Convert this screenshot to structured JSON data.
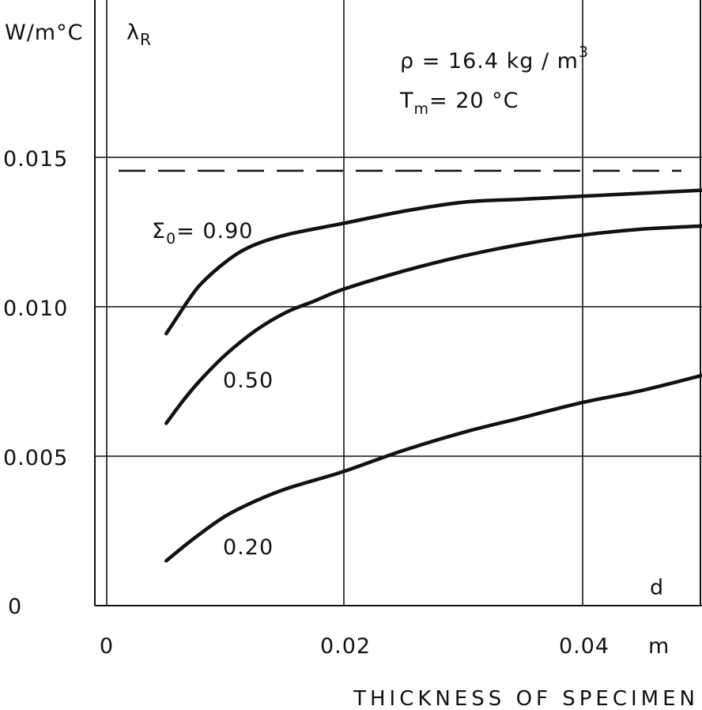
{
  "chart_data": {
    "type": "line",
    "title": "",
    "y_unit": "W/m°C",
    "y_symbol": "λ",
    "y_symbol_sub": "R",
    "x_symbol": "d",
    "x_unit": "m",
    "xlabel": "THICKNESS OF SPECIMEN",
    "xlim": [
      -0.001,
      0.05
    ],
    "ylim": [
      0,
      0.0175
    ],
    "x_ticks": [
      {
        "value": 0,
        "label": "0"
      },
      {
        "value": 0.02,
        "label": "0.02"
      },
      {
        "value": 0.04,
        "label": "0.04"
      }
    ],
    "y_ticks": [
      {
        "value": 0,
        "label": "0"
      },
      {
        "value": 0.005,
        "label": "0.005"
      },
      {
        "value": 0.01,
        "label": "0.010"
      },
      {
        "value": 0.015,
        "label": "0.015"
      }
    ],
    "grid": true,
    "conditions": {
      "density_prefix": "ρ",
      "density_text": " = 16.4 kg / m",
      "density_exp": "3",
      "temp_prefix": "T",
      "temp_sub": "m",
      "temp_text": "= 20 °C"
    },
    "asymptote": {
      "y": 0.01455,
      "style": "dashed"
    },
    "emissivity_prefix": "Σ",
    "emissivity_sub": "0",
    "series": [
      {
        "name": "= 0.90",
        "x": [
          0.005,
          0.006,
          0.007,
          0.008,
          0.01,
          0.012,
          0.015,
          0.02,
          0.025,
          0.03,
          0.035,
          0.04,
          0.045,
          0.05
        ],
        "y": [
          0.0091,
          0.0097,
          0.0103,
          0.0108,
          0.0115,
          0.012,
          0.0124,
          0.0128,
          0.0132,
          0.0135,
          0.0136,
          0.0137,
          0.0138,
          0.0139
        ]
      },
      {
        "name": "0.50",
        "x": [
          0.005,
          0.0065,
          0.008,
          0.01,
          0.0125,
          0.015,
          0.0175,
          0.02,
          0.025,
          0.03,
          0.035,
          0.04,
          0.045,
          0.05
        ],
        "y": [
          0.0061,
          0.0069,
          0.0076,
          0.0084,
          0.0092,
          0.0098,
          0.0102,
          0.0106,
          0.0112,
          0.0117,
          0.0121,
          0.0124,
          0.0126,
          0.0127
        ]
      },
      {
        "name": "0.20",
        "x": [
          0.005,
          0.0075,
          0.01,
          0.0125,
          0.015,
          0.0175,
          0.02,
          0.025,
          0.03,
          0.035,
          0.04,
          0.045,
          0.05
        ],
        "y": [
          0.0015,
          0.0023,
          0.003,
          0.0035,
          0.0039,
          0.0042,
          0.0045,
          0.0052,
          0.0058,
          0.0063,
          0.0068,
          0.0072,
          0.0077
        ]
      }
    ]
  }
}
